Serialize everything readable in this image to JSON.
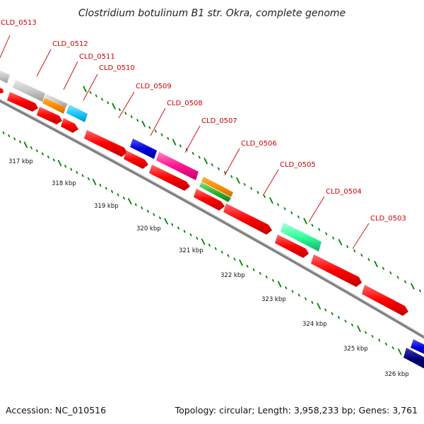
{
  "title": "Clostridium botulinum B1 str. Okra, complete genome",
  "accession": "Accession: NC_010516",
  "topology": "Topology: circular; Length: 3,958,233 bp; Genes: 3,761",
  "colors": {
    "red": "#ff0000",
    "grey": "#c8c8c8",
    "orange": "#ff8c00",
    "cyan": "#1ec8ff",
    "blue": "#0000dd",
    "magenta": "#ff1493",
    "green": "#2db82d",
    "aquamarine": "#33ff99",
    "navy": "#00007a",
    "label": "#cc0000",
    "tick": "#008000",
    "backbone": "#808080"
  },
  "gene_labels": [
    {
      "name": "CLD_0513"
    },
    {
      "name": "CLD_0512"
    },
    {
      "name": "CLD_0511"
    },
    {
      "name": "CLD_0510"
    },
    {
      "name": "CLD_0509"
    },
    {
      "name": "CLD_0508"
    },
    {
      "name": "CLD_0507"
    },
    {
      "name": "CLD_0506"
    },
    {
      "name": "CLD_0505"
    },
    {
      "name": "CLD_0504"
    },
    {
      "name": "CLD_0503"
    }
  ],
  "kbp_labels": [
    "317 kbp",
    "318 kbp",
    "319 kbp",
    "320 kbp",
    "321 kbp",
    "322 kbp",
    "323 kbp",
    "324 kbp",
    "325 kbp",
    "326 kbp"
  ]
}
